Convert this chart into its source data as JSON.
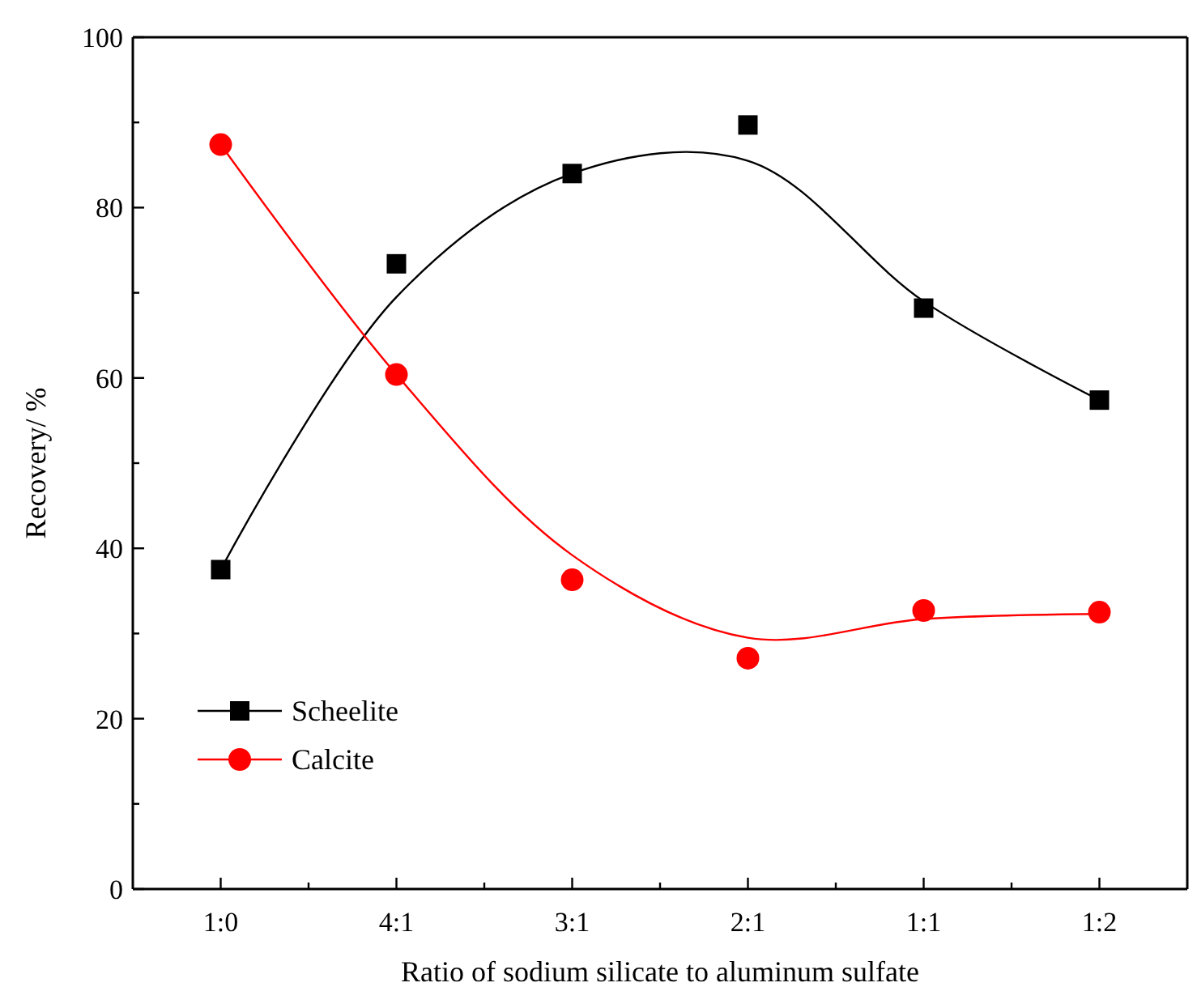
{
  "chart_data": {
    "type": "scatter",
    "xlabel": "Ratio of sodium silicate to aluminum sulfate",
    "ylabel": "Recovery/ %",
    "categories": [
      "1:0",
      "4:1",
      "3:1",
      "2:1",
      "1:1",
      "1:2"
    ],
    "ylim": [
      0,
      100
    ],
    "yticks": [
      0,
      {
        "value": 10,
        "label": null
      },
      20,
      {
        "value": 30,
        "label": null
      },
      40,
      {
        "value": 50,
        "label": null
      },
      60,
      {
        "value": 70,
        "label": null
      },
      80,
      {
        "value": 90,
        "label": null
      },
      100
    ],
    "grid": false,
    "legend": "bottom left",
    "series": [
      {
        "name": "Scheelite",
        "color": "#000000",
        "marker": "square",
        "values": [
          37.5,
          73.4,
          84.0,
          89.7,
          68.2,
          57.4
        ]
      },
      {
        "name": "Calcite",
        "color": "#ff0000",
        "marker": "circle",
        "values": [
          87.4,
          60.4,
          36.3,
          27.1,
          32.7,
          32.5
        ]
      },
      {
        "color": "#000000",
        "type": "line",
        "marker": "none",
        "line_style": "solid",
        "values": [
          37.5,
          69.5,
          84,
          85.5,
          69,
          57.4
        ]
      },
      {
        "color": "#ff0000",
        "type": "line",
        "marker": "none",
        "line_style": "solid",
        "values": [
          87.4,
          60.4,
          39.2,
          29.5,
          31.7,
          32.3
        ]
      }
    ]
  }
}
